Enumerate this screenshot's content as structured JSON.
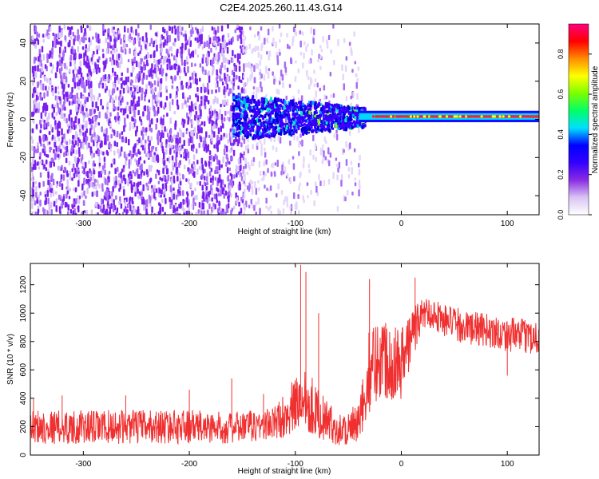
{
  "figure": {
    "title": "C2E4.2025.260.11.43.G14"
  },
  "chart_data": [
    {
      "type": "heatmap",
      "title": "C2E4.2025.260.11.43.G14",
      "xlabel": "Height of straight line (km)",
      "ylabel": "Frequency (Hz)",
      "xlim": [
        -350,
        130
      ],
      "ylim": [
        -50,
        50
      ],
      "xticks": [
        -300,
        -200,
        -100,
        0,
        100
      ],
      "yticks": [
        -40,
        -20,
        0,
        20,
        40
      ],
      "colorbar": {
        "label": "Normalized spectral amplitude",
        "range": [
          0,
          0.95
        ],
        "ticks": [
          "0.0",
          "0.2",
          "0.4",
          "0.6",
          "0.8"
        ],
        "colors": [
          "#ffffff",
          "#d8c4f4",
          "#8a2be2",
          "#3300ff",
          "#0000ff",
          "#00e0ff",
          "#00ff66",
          "#7cff00",
          "#ffff00",
          "#ff8c00",
          "#ff0000",
          "#ff007f"
        ]
      },
      "regions": [
        {
          "name": "scattered noise",
          "x_range": [
            -350,
            -160
          ],
          "freq_range": [
            -50,
            50
          ],
          "amplitude": 0.05
        },
        {
          "name": "sparse noise",
          "x_range": [
            -160,
            -60
          ],
          "freq_range": [
            -50,
            50
          ],
          "amplitude": 0.02
        },
        {
          "name": "transition band",
          "x_range": [
            -160,
            -40
          ],
          "freq_range": [
            -10,
            12
          ],
          "amplitude": 0.25
        },
        {
          "name": "carrier line",
          "x_range": [
            -40,
            130
          ],
          "freq_center": 1.5,
          "freq_width": 2.5,
          "amplitude": 0.85
        }
      ],
      "colors": {
        "accent": "#7b1fe0"
      }
    },
    {
      "type": "line",
      "xlabel": "Height of straight line (km)",
      "ylabel": "SNR (10 * v/v)",
      "xlim": [
        -350,
        130
      ],
      "ylim": [
        0,
        1350
      ],
      "xticks": [
        -300,
        -200,
        -100,
        0,
        100
      ],
      "yticks": [
        0,
        200,
        400,
        600,
        800,
        1000,
        1200
      ],
      "series": [
        {
          "color": "#f03030",
          "x": [
            -350,
            -300,
            -250,
            -200,
            -160,
            -120,
            -100,
            -90,
            -80,
            -60,
            -40,
            -30,
            -20,
            -10,
            0,
            10,
            20,
            30,
            40,
            60,
            80,
            100,
            130
          ],
          "mean": [
            200,
            195,
            200,
            200,
            190,
            220,
            350,
            420,
            300,
            180,
            200,
            600,
            700,
            680,
            650,
            850,
            1000,
            1000,
            950,
            900,
            880,
            850,
            830
          ],
          "spread": [
            120,
            120,
            120,
            120,
            110,
            120,
            200,
            250,
            180,
            110,
            160,
            300,
            300,
            300,
            260,
            200,
            110,
            110,
            120,
            120,
            120,
            120,
            120
          ],
          "spikes": [
            {
              "x": -347,
              "y": 395
            },
            {
              "x": -320,
              "y": 420
            },
            {
              "x": -260,
              "y": 420
            },
            {
              "x": -200,
              "y": 460
            },
            {
              "x": -160,
              "y": 540
            },
            {
              "x": -130,
              "y": 430
            },
            {
              "x": -95,
              "y": 1340
            },
            {
              "x": -90,
              "y": 1290
            },
            {
              "x": -78,
              "y": 1000
            },
            {
              "x": -30,
              "y": 1240
            },
            {
              "x": 13,
              "y": 1250
            },
            {
              "x": 100,
              "y": 560
            }
          ]
        }
      ]
    }
  ]
}
